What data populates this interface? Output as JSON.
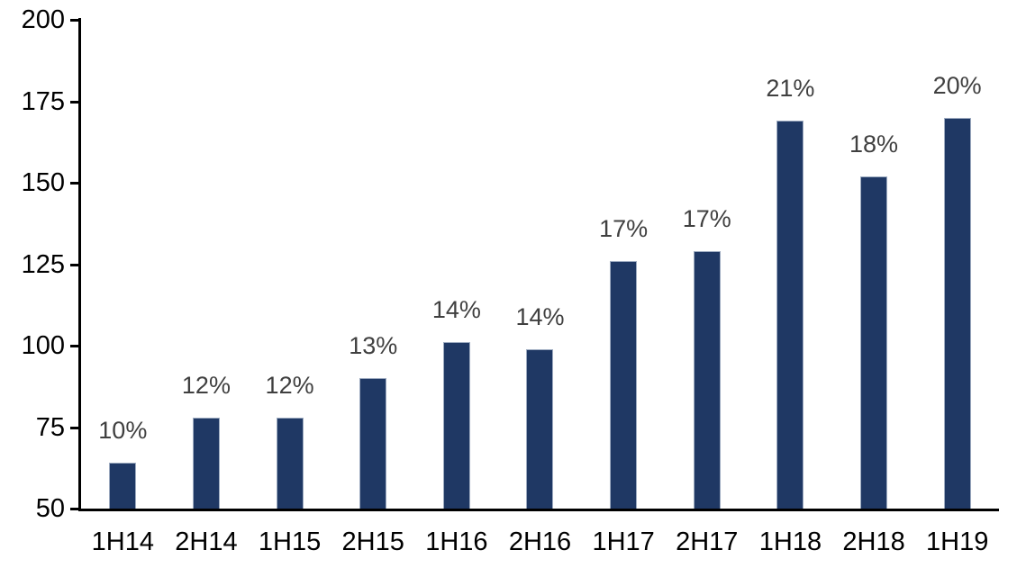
{
  "chart_data": {
    "type": "bar",
    "title": "",
    "xlabel": "",
    "ylabel": "",
    "categories": [
      "1H14",
      "2H14",
      "1H15",
      "2H15",
      "1H16",
      "2H16",
      "1H17",
      "2H17",
      "1H18",
      "2H18",
      "1H19"
    ],
    "values": [
      64,
      78,
      78,
      90,
      101,
      99,
      126,
      129,
      169,
      152,
      170
    ],
    "bar_labels": [
      "10%",
      "12%",
      "12%",
      "13%",
      "14%",
      "14%",
      "17%",
      "17%",
      "21%",
      "18%",
      "20%"
    ],
    "ylim": [
      50,
      200
    ],
    "yticks": [
      50,
      75,
      100,
      125,
      150,
      175,
      200
    ],
    "grid": false,
    "legend_position": "none",
    "colors": {
      "bar_fill": "#1F3864",
      "bar_border": "#9DABC0",
      "data_label": "#404040",
      "axis": "#000000",
      "tick_label": "#000000",
      "background": "#ffffff"
    }
  }
}
